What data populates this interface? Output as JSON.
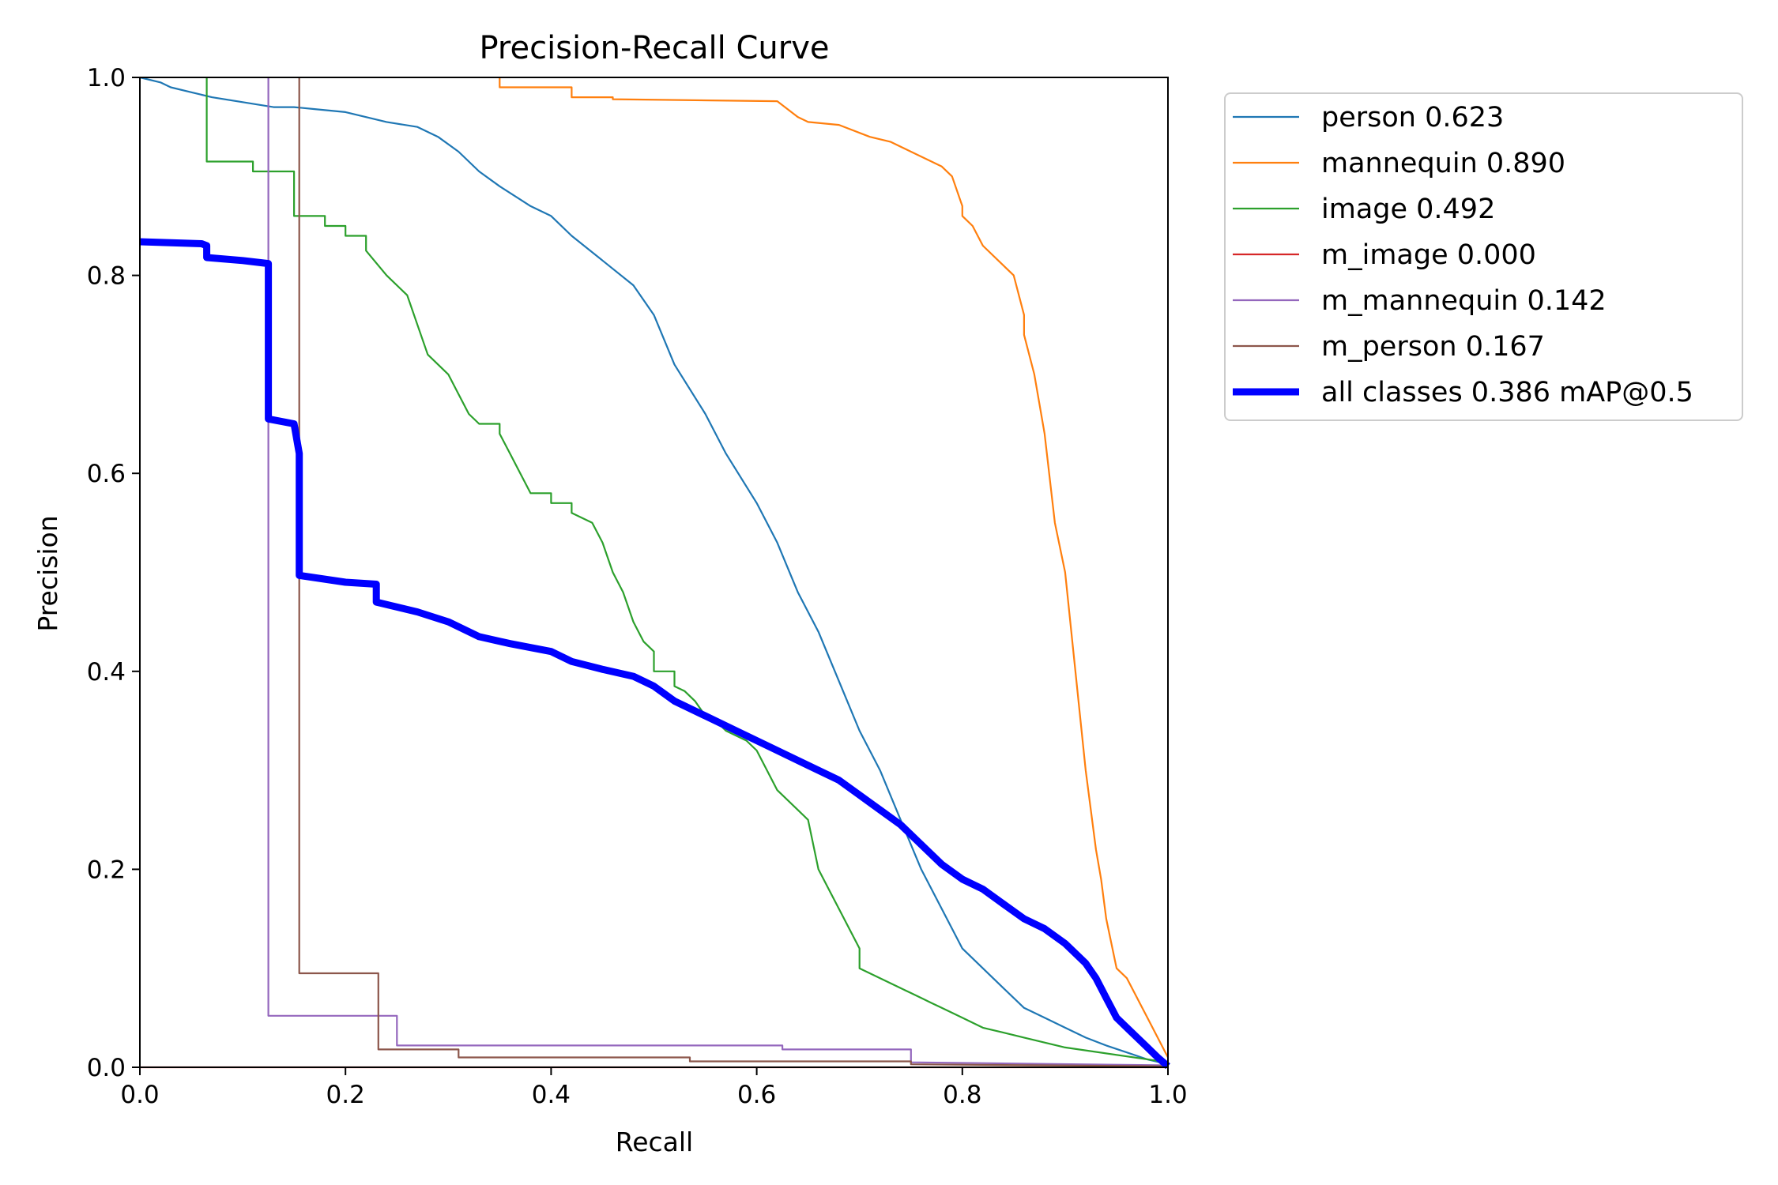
{
  "chart_data": {
    "type": "line",
    "title": "Precision-Recall Curve",
    "xlabel": "Recall",
    "ylabel": "Precision",
    "xlim": [
      0,
      1
    ],
    "ylim": [
      0,
      1
    ],
    "xticks": [
      "0.0",
      "0.2",
      "0.4",
      "0.6",
      "0.8",
      "1.0"
    ],
    "yticks": [
      "0.0",
      "0.2",
      "0.4",
      "0.6",
      "0.8",
      "1.0"
    ],
    "grid": false,
    "legend_position": "outside-right-top",
    "series": [
      {
        "name": "person 0.623",
        "color": "#1f77b4",
        "width": "thin",
        "x": [
          0,
          0.02,
          0.03,
          0.05,
          0.07,
          0.1,
          0.13,
          0.15,
          0.17,
          0.2,
          0.24,
          0.27,
          0.29,
          0.31,
          0.33,
          0.35,
          0.38,
          0.4,
          0.42,
          0.45,
          0.48,
          0.5,
          0.52,
          0.55,
          0.57,
          0.6,
          0.62,
          0.64,
          0.66,
          0.68,
          0.7,
          0.72,
          0.74,
          0.76,
          0.78,
          0.8,
          0.82,
          0.84,
          0.86,
          0.88,
          0.9,
          0.92,
          0.94,
          0.96,
          0.98,
          1.0
        ],
        "y": [
          1.0,
          0.995,
          0.99,
          0.985,
          0.98,
          0.975,
          0.97,
          0.97,
          0.968,
          0.965,
          0.955,
          0.95,
          0.94,
          0.925,
          0.905,
          0.89,
          0.87,
          0.86,
          0.84,
          0.815,
          0.79,
          0.76,
          0.71,
          0.66,
          0.62,
          0.57,
          0.53,
          0.48,
          0.44,
          0.39,
          0.34,
          0.3,
          0.25,
          0.2,
          0.16,
          0.12,
          0.1,
          0.08,
          0.06,
          0.05,
          0.04,
          0.03,
          0.022,
          0.015,
          0.008,
          0.003
        ]
      },
      {
        "name": "mannequin 0.890",
        "color": "#ff7f0e",
        "width": "thin",
        "x": [
          0.35,
          0.35,
          0.42,
          0.42,
          0.46,
          0.46,
          0.62,
          0.64,
          0.65,
          0.68,
          0.71,
          0.73,
          0.75,
          0.76,
          0.78,
          0.79,
          0.8,
          0.8,
          0.81,
          0.82,
          0.84,
          0.85,
          0.86,
          0.86,
          0.87,
          0.88,
          0.89,
          0.9,
          0.91,
          0.92,
          0.93,
          0.935,
          0.94,
          0.95,
          0.96,
          0.97,
          0.98,
          0.99,
          1.0
        ],
        "y": [
          1.0,
          0.99,
          0.99,
          0.98,
          0.98,
          0.978,
          0.976,
          0.96,
          0.955,
          0.952,
          0.94,
          0.935,
          0.925,
          0.92,
          0.91,
          0.9,
          0.87,
          0.86,
          0.85,
          0.83,
          0.81,
          0.8,
          0.76,
          0.74,
          0.7,
          0.64,
          0.55,
          0.5,
          0.4,
          0.3,
          0.22,
          0.19,
          0.15,
          0.1,
          0.09,
          0.07,
          0.05,
          0.03,
          0.01
        ]
      },
      {
        "name": "image 0.492",
        "color": "#2ca02c",
        "width": "thin",
        "x": [
          0.065,
          0.065,
          0.11,
          0.11,
          0.15,
          0.15,
          0.18,
          0.18,
          0.2,
          0.2,
          0.22,
          0.22,
          0.24,
          0.26,
          0.27,
          0.28,
          0.3,
          0.31,
          0.32,
          0.33,
          0.34,
          0.35,
          0.35,
          0.36,
          0.37,
          0.38,
          0.38,
          0.4,
          0.4,
          0.42,
          0.42,
          0.44,
          0.45,
          0.46,
          0.47,
          0.48,
          0.49,
          0.5,
          0.5,
          0.52,
          0.52,
          0.53,
          0.54,
          0.55,
          0.56,
          0.57,
          0.58,
          0.59,
          0.6,
          0.61,
          0.62,
          0.63,
          0.64,
          0.65,
          0.66,
          0.67,
          0.68,
          0.7,
          0.7,
          0.72,
          0.73,
          0.74,
          0.75,
          0.76,
          0.77,
          0.78,
          0.8,
          0.82,
          0.84,
          0.86,
          0.88,
          0.9,
          1.0
        ],
        "y": [
          1.0,
          0.915,
          0.915,
          0.905,
          0.905,
          0.86,
          0.86,
          0.85,
          0.85,
          0.84,
          0.84,
          0.825,
          0.8,
          0.78,
          0.75,
          0.72,
          0.7,
          0.68,
          0.66,
          0.65,
          0.65,
          0.65,
          0.64,
          0.62,
          0.6,
          0.58,
          0.58,
          0.58,
          0.57,
          0.57,
          0.56,
          0.55,
          0.53,
          0.5,
          0.48,
          0.45,
          0.43,
          0.42,
          0.4,
          0.4,
          0.385,
          0.38,
          0.37,
          0.355,
          0.35,
          0.34,
          0.335,
          0.33,
          0.32,
          0.3,
          0.28,
          0.27,
          0.26,
          0.25,
          0.2,
          0.18,
          0.16,
          0.12,
          0.1,
          0.09,
          0.085,
          0.08,
          0.075,
          0.07,
          0.065,
          0.06,
          0.05,
          0.04,
          0.035,
          0.03,
          0.025,
          0.02,
          0.005
        ]
      },
      {
        "name": "m_image 0.000",
        "color": "#d62728",
        "width": "thin",
        "x": [
          0.0,
          1.0
        ],
        "y": [
          0.0,
          0.0
        ]
      },
      {
        "name": "m_mannequin 0.142",
        "color": "#9467bd",
        "width": "thin",
        "x": [
          0.125,
          0.125,
          0.25,
          0.25,
          0.625,
          0.625,
          0.75,
          0.75,
          1.0
        ],
        "y": [
          1.0,
          0.052,
          0.052,
          0.022,
          0.022,
          0.018,
          0.018,
          0.005,
          0.002
        ]
      },
      {
        "name": "m_person 0.167",
        "color": "#8c564b",
        "width": "thin",
        "x": [
          0.155,
          0.155,
          0.232,
          0.232,
          0.31,
          0.31,
          0.535,
          0.535,
          0.75,
          0.75,
          1.0
        ],
        "y": [
          1.0,
          0.095,
          0.095,
          0.018,
          0.018,
          0.01,
          0.01,
          0.006,
          0.006,
          0.003,
          0.001
        ]
      },
      {
        "name": "all classes 0.386 mAP@0.5",
        "color": "#0000ff",
        "width": "thick",
        "x": [
          0,
          0.06,
          0.065,
          0.065,
          0.1,
          0.125,
          0.125,
          0.125,
          0.15,
          0.155,
          0.155,
          0.2,
          0.23,
          0.23,
          0.25,
          0.27,
          0.3,
          0.33,
          0.36,
          0.4,
          0.42,
          0.45,
          0.48,
          0.5,
          0.52,
          0.55,
          0.58,
          0.6,
          0.62,
          0.65,
          0.68,
          0.7,
          0.72,
          0.74,
          0.76,
          0.78,
          0.8,
          0.82,
          0.84,
          0.86,
          0.88,
          0.9,
          0.92,
          0.93,
          0.94,
          0.95,
          0.96,
          0.97,
          0.98,
          0.99,
          1.0
        ],
        "y": [
          0.834,
          0.832,
          0.83,
          0.818,
          0.815,
          0.812,
          0.66,
          0.655,
          0.65,
          0.62,
          0.497,
          0.49,
          0.488,
          0.47,
          0.465,
          0.46,
          0.45,
          0.435,
          0.428,
          0.42,
          0.41,
          0.402,
          0.395,
          0.385,
          0.37,
          0.355,
          0.34,
          0.33,
          0.32,
          0.305,
          0.29,
          0.275,
          0.26,
          0.245,
          0.225,
          0.205,
          0.19,
          0.18,
          0.165,
          0.15,
          0.14,
          0.125,
          0.105,
          0.09,
          0.07,
          0.05,
          0.04,
          0.03,
          0.02,
          0.01,
          0.001
        ]
      }
    ]
  }
}
